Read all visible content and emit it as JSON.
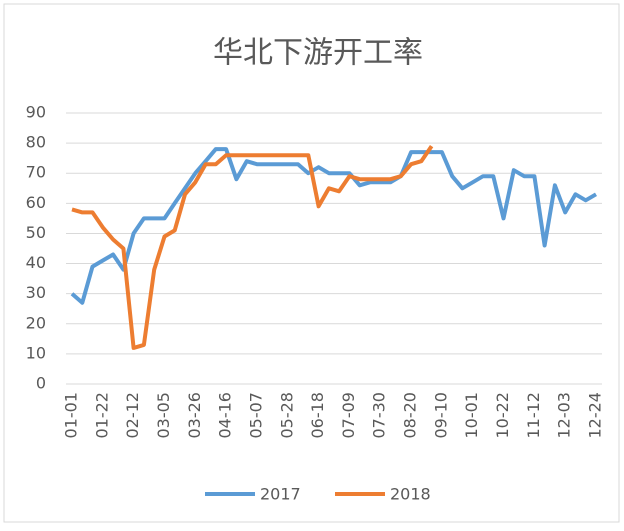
{
  "chart_data": {
    "type": "line",
    "title": "华北下游开工率",
    "categories": [
      "01-01",
      null,
      null,
      "01-22",
      null,
      null,
      "02-12",
      null,
      null,
      "03-05",
      null,
      null,
      "03-26",
      null,
      null,
      "04-16",
      null,
      null,
      "05-07",
      null,
      null,
      "05-28",
      null,
      null,
      "06-18",
      null,
      null,
      "07-09",
      null,
      null,
      "07-30",
      null,
      null,
      "08-20",
      null,
      null,
      "09-10",
      null,
      null,
      "10-01",
      null,
      null,
      "10-22",
      null,
      null,
      "11-12",
      null,
      null,
      "12-03",
      null,
      null,
      "12-24"
    ],
    "series": [
      {
        "name": "2017",
        "color": "#5b9bd5",
        "values": [
          30,
          27,
          39,
          41,
          43,
          38,
          50,
          55,
          55,
          55,
          60,
          65,
          70,
          74,
          78,
          78,
          68,
          74,
          73,
          73,
          73,
          73,
          73,
          70,
          72,
          70,
          70,
          70,
          66,
          67,
          67,
          67,
          69,
          77,
          77,
          77,
          77,
          69,
          65,
          67,
          69,
          69,
          55,
          71,
          69,
          69,
          46,
          66,
          57,
          63,
          61,
          63
        ]
      },
      {
        "name": "2018",
        "color": "#ed7d31",
        "values": [
          58,
          57,
          57,
          52,
          48,
          45,
          12,
          13,
          38,
          49,
          51,
          63,
          67,
          73,
          73,
          76,
          76,
          76,
          76,
          76,
          76,
          76,
          76,
          76,
          59,
          65,
          64,
          69,
          68,
          68,
          68,
          68,
          69,
          73,
          74,
          79,
          null,
          null,
          null,
          null,
          null,
          null,
          null,
          null,
          null,
          null,
          null,
          null,
          null,
          null,
          null,
          null
        ]
      }
    ],
    "ylim": [
      0,
      90
    ],
    "yticks": [
      0,
      10,
      20,
      30,
      40,
      50,
      60,
      70,
      80,
      90
    ],
    "grid": true,
    "legend": "bottom"
  }
}
